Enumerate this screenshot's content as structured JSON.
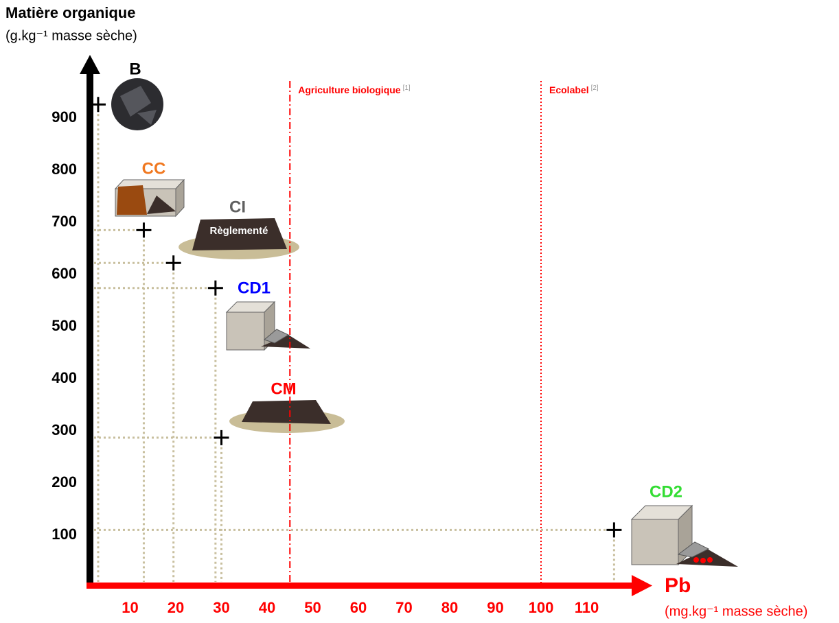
{
  "chart_data": {
    "type": "scatter",
    "y_title": "Matière organique",
    "y_unit": "(g.kg⁻¹ masse sèche)",
    "x_title": "Pb",
    "x_unit": "(mg.kg⁻¹ masse sèche)",
    "xlim": [
      0,
      124
    ],
    "ylim": [
      0,
      1015
    ],
    "xticks": [
      10,
      20,
      30,
      40,
      50,
      60,
      70,
      80,
      90,
      100,
      110
    ],
    "yticks": [
      100,
      200,
      300,
      400,
      500,
      600,
      700,
      800,
      900
    ],
    "x_axis_color": "#ff0000",
    "y_axis_color": "#000000",
    "marker_color": "#000000",
    "points": [
      {
        "label": "B",
        "color": "#000000",
        "x": 3,
        "y": 926
      },
      {
        "label": "CC",
        "color": "#f07820",
        "x": 13,
        "y": 685
      },
      {
        "label": "CI",
        "color": "#606060",
        "x": 19.5,
        "y": 622
      },
      {
        "label": "CD1",
        "color": "#0000ff",
        "x": 28.7,
        "y": 574
      },
      {
        "label": "CM",
        "color": "#ff0000",
        "x": 30,
        "y": 287
      },
      {
        "label": "CD2",
        "color": "#33dd33",
        "x": 116,
        "y": 110
      }
    ],
    "thresholds": [
      {
        "label": "Agriculture biologique",
        "ref": "[1]",
        "x": 45,
        "style": "dashdot",
        "color": "#ff0000"
      },
      {
        "label": "Ecolabel",
        "ref": "[2]",
        "x": 100,
        "style": "dotted",
        "color": "#ff0000"
      }
    ],
    "annotation": "Règlementé"
  }
}
